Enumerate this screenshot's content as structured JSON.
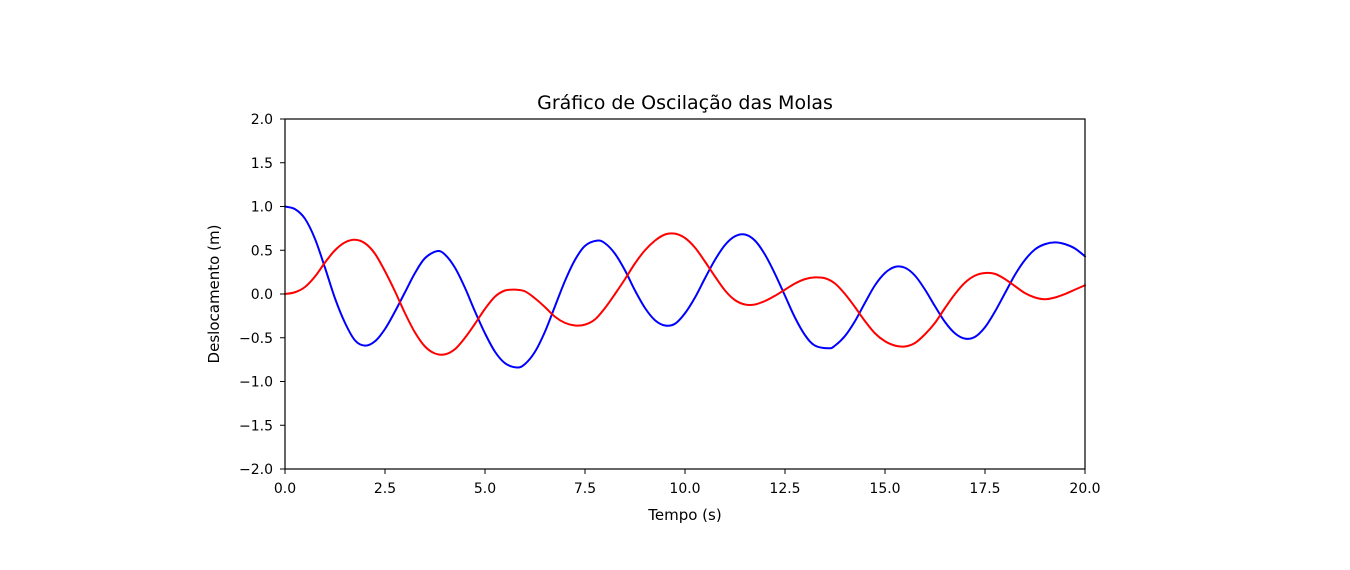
{
  "chart_data": {
    "type": "line",
    "title": "Gráfico de Oscilação das Molas",
    "xlabel": "Tempo (s)",
    "ylabel": "Deslocamento (m)",
    "xlim": [
      0,
      20
    ],
    "ylim": [
      -2,
      2
    ],
    "grid": false,
    "legend": "none",
    "x_ticks": [
      "0.0",
      "2.5",
      "5.0",
      "7.5",
      "10.0",
      "12.5",
      "15.0",
      "17.5",
      "20.0"
    ],
    "y_ticks": [
      "−2.0",
      "−1.5",
      "−1.0",
      "−0.5",
      "0.0",
      "0.5",
      "1.0",
      "1.5",
      "2.0"
    ],
    "series": [
      {
        "color": "#0000ff",
        "points": [
          [
            0.0,
            1.0
          ],
          [
            0.25,
            0.97
          ],
          [
            0.5,
            0.86
          ],
          [
            0.75,
            0.63
          ],
          [
            1.0,
            0.3
          ],
          [
            1.25,
            -0.05
          ],
          [
            1.5,
            -0.33
          ],
          [
            1.75,
            -0.53
          ],
          [
            2.0,
            -0.59
          ],
          [
            2.25,
            -0.54
          ],
          [
            2.5,
            -0.4
          ],
          [
            2.75,
            -0.2
          ],
          [
            3.0,
            0.02
          ],
          [
            3.25,
            0.24
          ],
          [
            3.5,
            0.41
          ],
          [
            3.8,
            0.49
          ],
          [
            4.0,
            0.45
          ],
          [
            4.25,
            0.3
          ],
          [
            4.5,
            0.07
          ],
          [
            4.75,
            -0.2
          ],
          [
            5.0,
            -0.45
          ],
          [
            5.25,
            -0.66
          ],
          [
            5.5,
            -0.79
          ],
          [
            5.8,
            -0.84
          ],
          [
            6.0,
            -0.8
          ],
          [
            6.25,
            -0.66
          ],
          [
            6.5,
            -0.43
          ],
          [
            6.75,
            -0.14
          ],
          [
            7.0,
            0.15
          ],
          [
            7.25,
            0.39
          ],
          [
            7.5,
            0.55
          ],
          [
            7.8,
            0.61
          ],
          [
            8.0,
            0.58
          ],
          [
            8.25,
            0.46
          ],
          [
            8.5,
            0.27
          ],
          [
            8.75,
            0.04
          ],
          [
            9.0,
            -0.16
          ],
          [
            9.25,
            -0.3
          ],
          [
            9.5,
            -0.36
          ],
          [
            9.75,
            -0.34
          ],
          [
            10.0,
            -0.22
          ],
          [
            10.25,
            -0.04
          ],
          [
            10.5,
            0.18
          ],
          [
            10.75,
            0.39
          ],
          [
            11.0,
            0.56
          ],
          [
            11.25,
            0.66
          ],
          [
            11.5,
            0.68
          ],
          [
            11.75,
            0.61
          ],
          [
            12.0,
            0.45
          ],
          [
            12.25,
            0.23
          ],
          [
            12.5,
            -0.02
          ],
          [
            12.75,
            -0.27
          ],
          [
            13.0,
            -0.47
          ],
          [
            13.25,
            -0.59
          ],
          [
            13.6,
            -0.62
          ],
          [
            13.75,
            -0.59
          ],
          [
            14.0,
            -0.48
          ],
          [
            14.25,
            -0.31
          ],
          [
            14.5,
            -0.1
          ],
          [
            14.75,
            0.1
          ],
          [
            15.0,
            0.24
          ],
          [
            15.25,
            0.31
          ],
          [
            15.5,
            0.3
          ],
          [
            15.75,
            0.21
          ],
          [
            16.0,
            0.05
          ],
          [
            16.25,
            -0.14
          ],
          [
            16.5,
            -0.32
          ],
          [
            16.75,
            -0.45
          ],
          [
            17.0,
            -0.51
          ],
          [
            17.25,
            -0.49
          ],
          [
            17.5,
            -0.38
          ],
          [
            17.75,
            -0.2
          ],
          [
            18.0,
            0.01
          ],
          [
            18.25,
            0.22
          ],
          [
            18.5,
            0.39
          ],
          [
            18.75,
            0.51
          ],
          [
            19.0,
            0.57
          ],
          [
            19.25,
            0.59
          ],
          [
            19.5,
            0.57
          ],
          [
            19.75,
            0.52
          ],
          [
            20.0,
            0.43
          ]
        ]
      },
      {
        "color": "#ff0000",
        "points": [
          [
            0.0,
            0.0
          ],
          [
            0.25,
            0.02
          ],
          [
            0.5,
            0.08
          ],
          [
            0.75,
            0.2
          ],
          [
            1.0,
            0.36
          ],
          [
            1.25,
            0.5
          ],
          [
            1.5,
            0.59
          ],
          [
            1.75,
            0.62
          ],
          [
            2.0,
            0.58
          ],
          [
            2.25,
            0.46
          ],
          [
            2.5,
            0.26
          ],
          [
            2.75,
            0.03
          ],
          [
            3.0,
            -0.22
          ],
          [
            3.25,
            -0.44
          ],
          [
            3.5,
            -0.6
          ],
          [
            3.75,
            -0.68
          ],
          [
            4.0,
            -0.69
          ],
          [
            4.25,
            -0.63
          ],
          [
            4.5,
            -0.5
          ],
          [
            4.75,
            -0.34
          ],
          [
            5.0,
            -0.17
          ],
          [
            5.25,
            -0.03
          ],
          [
            5.5,
            0.04
          ],
          [
            5.75,
            0.05
          ],
          [
            6.0,
            0.03
          ],
          [
            6.25,
            -0.05
          ],
          [
            6.5,
            -0.15
          ],
          [
            6.75,
            -0.26
          ],
          [
            7.0,
            -0.33
          ],
          [
            7.25,
            -0.36
          ],
          [
            7.5,
            -0.35
          ],
          [
            7.75,
            -0.29
          ],
          [
            8.0,
            -0.16
          ],
          [
            8.25,
            0.0
          ],
          [
            8.5,
            0.17
          ],
          [
            8.75,
            0.35
          ],
          [
            9.0,
            0.5
          ],
          [
            9.25,
            0.61
          ],
          [
            9.5,
            0.68
          ],
          [
            9.75,
            0.69
          ],
          [
            10.0,
            0.64
          ],
          [
            10.25,
            0.53
          ],
          [
            10.5,
            0.37
          ],
          [
            10.75,
            0.2
          ],
          [
            11.0,
            0.04
          ],
          [
            11.25,
            -0.07
          ],
          [
            11.5,
            -0.12
          ],
          [
            11.75,
            -0.12
          ],
          [
            12.0,
            -0.08
          ],
          [
            12.25,
            -0.02
          ],
          [
            12.5,
            0.05
          ],
          [
            12.75,
            0.12
          ],
          [
            13.0,
            0.17
          ],
          [
            13.25,
            0.19
          ],
          [
            13.5,
            0.18
          ],
          [
            13.75,
            0.12
          ],
          [
            14.0,
            0.0
          ],
          [
            14.25,
            -0.15
          ],
          [
            14.5,
            -0.31
          ],
          [
            14.75,
            -0.45
          ],
          [
            15.0,
            -0.54
          ],
          [
            15.25,
            -0.59
          ],
          [
            15.5,
            -0.6
          ],
          [
            15.75,
            -0.56
          ],
          [
            16.0,
            -0.46
          ],
          [
            16.25,
            -0.33
          ],
          [
            16.5,
            -0.16
          ],
          [
            16.75,
            0.0
          ],
          [
            17.0,
            0.13
          ],
          [
            17.25,
            0.21
          ],
          [
            17.5,
            0.24
          ],
          [
            17.75,
            0.23
          ],
          [
            18.0,
            0.17
          ],
          [
            18.25,
            0.09
          ],
          [
            18.5,
            0.01
          ],
          [
            18.75,
            -0.04
          ],
          [
            19.0,
            -0.06
          ],
          [
            19.25,
            -0.04
          ],
          [
            19.5,
            0.0
          ],
          [
            19.75,
            0.05
          ],
          [
            20.0,
            0.1
          ]
        ]
      }
    ]
  }
}
